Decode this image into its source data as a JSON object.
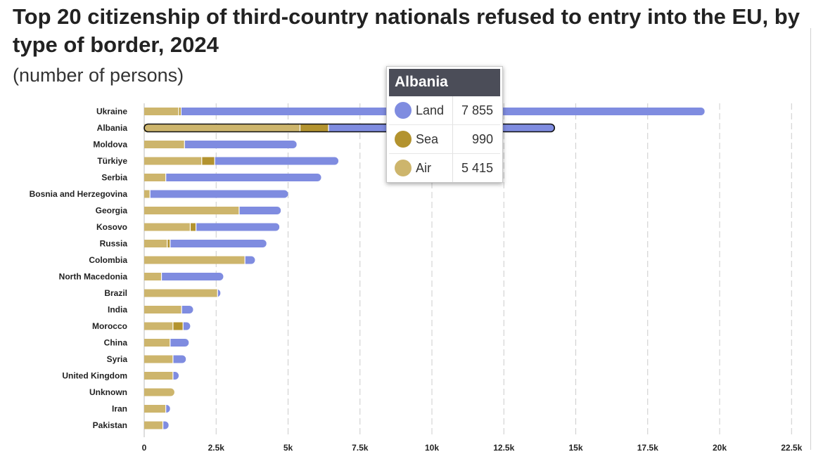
{
  "title": "Top 20 citizenship of third-country nationals refused to entry into the EU, by type of border, 2024",
  "subtitle": "(number of persons)",
  "colors": {
    "land": "#7f8ce0",
    "sea": "#b3932f",
    "air": "#cdb56c",
    "grid": "#cccccc",
    "text": "#222222"
  },
  "chart_data": {
    "type": "bar",
    "orientation": "horizontal",
    "stacked": true,
    "categories": [
      "Ukraine",
      "Albania",
      "Moldova",
      "Türkiye",
      "Serbia",
      "Bosnia and Herzegovina",
      "Georgia",
      "Kosovo",
      "Russia",
      "Colombia",
      "North Macedonia",
      "Brazil",
      "India",
      "Morocco",
      "China",
      "Syria",
      "United Kingdom",
      "Unknown",
      "Iran",
      "Pakistan"
    ],
    "series": [
      {
        "name": "Air",
        "color": "#cdb56c",
        "values": [
          1200,
          5415,
          1400,
          2000,
          750,
          200,
          3300,
          1600,
          800,
          3500,
          600,
          2550,
          1300,
          1000,
          900,
          1000,
          1000,
          1050,
          750,
          650
        ]
      },
      {
        "name": "Sea",
        "color": "#b3932f",
        "values": [
          80,
          990,
          0,
          450,
          0,
          0,
          0,
          200,
          100,
          0,
          0,
          0,
          0,
          350,
          0,
          0,
          0,
          0,
          0,
          0
        ]
      },
      {
        "name": "Land",
        "color": "#7f8ce0",
        "values": [
          18200,
          7855,
          3900,
          4300,
          5400,
          4800,
          1450,
          2900,
          3350,
          350,
          2150,
          100,
          400,
          250,
          650,
          450,
          200,
          0,
          150,
          200
        ]
      }
    ],
    "x_ticks": [
      "0",
      "2.5k",
      "5k",
      "7.5k",
      "10k",
      "12.5k",
      "15k",
      "17.5k",
      "20k",
      "22.5k"
    ],
    "xlim": [
      0,
      22500
    ],
    "grid": true,
    "highlighted_category": "Albania"
  },
  "tooltip": {
    "title": "Albania",
    "rows": [
      {
        "name": "Land",
        "value": "7 855",
        "color": "#7f8ce0"
      },
      {
        "name": "Sea",
        "value": "990",
        "color": "#b3932f"
      },
      {
        "name": "Air",
        "value": "5 415",
        "color": "#cdb56c"
      }
    ]
  }
}
